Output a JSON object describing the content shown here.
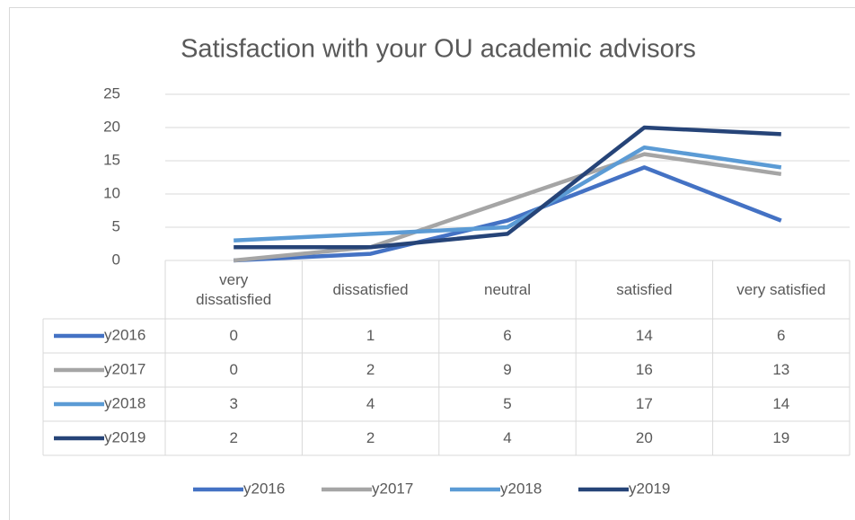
{
  "chart_data": {
    "type": "line",
    "title": "Satisfaction with your OU academic advisors",
    "categories": [
      "very dissatisfied",
      "dissatisfied",
      "neutral",
      "satisfied",
      "very satisfied"
    ],
    "series": [
      {
        "name": "y2016",
        "color": "#4472c4",
        "values": [
          0,
          1,
          6,
          14,
          6
        ]
      },
      {
        "name": "y2017",
        "color": "#a5a5a5",
        "values": [
          0,
          2,
          9,
          16,
          13
        ]
      },
      {
        "name": "y2018",
        "color": "#5b9bd5",
        "values": [
          3,
          4,
          5,
          17,
          14
        ]
      },
      {
        "name": "y2019",
        "color": "#264478",
        "values": [
          2,
          2,
          4,
          20,
          19
        ]
      }
    ],
    "ylim": [
      0,
      25
    ],
    "yticks": [
      0,
      5,
      10,
      15,
      20,
      25
    ],
    "grid": true,
    "legend": "bottom"
  }
}
